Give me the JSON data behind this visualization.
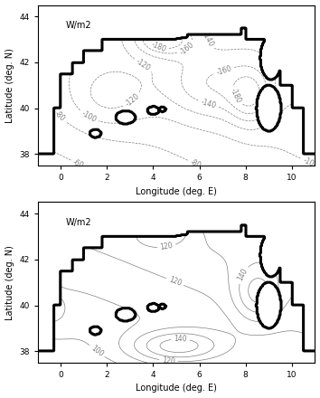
{
  "xlim": [
    -1,
    11
  ],
  "ylim": [
    37.5,
    44.5
  ],
  "xticks": [
    0,
    2,
    4,
    6,
    8,
    10
  ],
  "yticks": [
    38,
    40,
    42,
    44
  ],
  "xlabel": "Longitude (deg. E)",
  "ylabel": "Latitude (deg. N)",
  "unit_label": "W/m2",
  "figsize": [
    3.54,
    4.4
  ],
  "dpi": 100
}
